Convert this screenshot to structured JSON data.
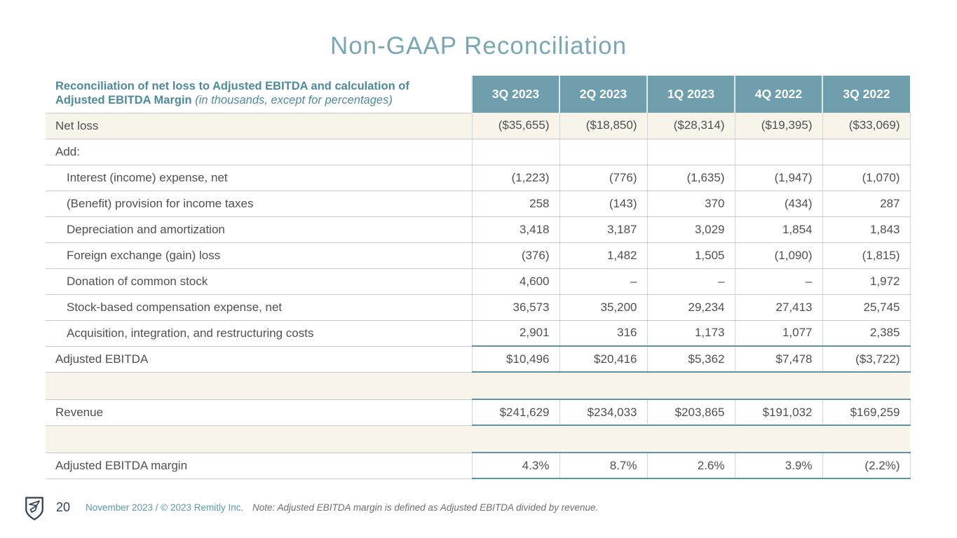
{
  "title": "Non-GAAP Reconciliation",
  "table": {
    "header_label_bold": "Reconciliation of net loss to Adjusted EBITDA and calculation of Adjusted EBITDA Margin",
    "header_label_italic": "(in thousands, except for percentages)",
    "columns": [
      "3Q 2023",
      "2Q 2023",
      "1Q 2023",
      "4Q 2022",
      "3Q 2022"
    ],
    "rows": [
      {
        "label": "Net loss",
        "values": [
          "($35,655)",
          "($18,850)",
          "($28,314)",
          "($19,395)",
          "($33,069)"
        ],
        "highlight": true
      },
      {
        "label": "Add:",
        "values": [
          "",
          "",
          "",
          "",
          ""
        ]
      },
      {
        "label": "Interest (income) expense, net",
        "values": [
          "(1,223)",
          "(776)",
          "(1,635)",
          "(1,947)",
          "(1,070)"
        ],
        "indent": true
      },
      {
        "label": "(Benefit) provision for income taxes",
        "values": [
          "258",
          "(143)",
          "370",
          "(434)",
          "287"
        ],
        "indent": true
      },
      {
        "label": "Depreciation and amortization",
        "values": [
          "3,418",
          "3,187",
          "3,029",
          "1,854",
          "1,843"
        ],
        "indent": true
      },
      {
        "label": "Foreign exchange (gain) loss",
        "values": [
          "(376)",
          "1,482",
          "1,505",
          "(1,090)",
          "(1,815)"
        ],
        "indent": true
      },
      {
        "label": "Donation of common stock",
        "values": [
          "4,600",
          "–",
          "–",
          "–",
          "1,972"
        ],
        "indent": true
      },
      {
        "label": "Stock-based compensation expense, net",
        "values": [
          "36,573",
          "35,200",
          "29,234",
          "27,413",
          "25,745"
        ],
        "indent": true
      },
      {
        "label": "Acquisition, integration, and restructuring costs",
        "values": [
          "2,901",
          "316",
          "1,173",
          "1,077",
          "2,385"
        ],
        "indent": true
      },
      {
        "label": "Adjusted EBITDA",
        "values": [
          "$10,496",
          "$20,416",
          "$5,362",
          "$7,478",
          "($3,722)"
        ],
        "total": true
      },
      {
        "type": "spacer"
      },
      {
        "label": "Revenue",
        "values": [
          "$241,629",
          "$234,033",
          "$203,865",
          "$191,032",
          "$169,259"
        ],
        "total": true
      },
      {
        "type": "spacer"
      },
      {
        "label": "Adjusted EBITDA margin",
        "values": [
          "4.3%",
          "8.7%",
          "2.6%",
          "3.9%",
          "(2.2%)"
        ],
        "total": true
      }
    ]
  },
  "footer": {
    "page_number": "20",
    "date_copyright": "November 2023 / © 2023 Remitly Inc.",
    "note": "Note: Adjusted EBITDA margin is defined as Adjusted EBITDA divided by revenue.",
    "logo": "remitly-shield-logo"
  },
  "colors": {
    "accent_teal_header": "#6f9fac",
    "title_teal": "#79a7b3",
    "label_header_teal": "#4f8a9b",
    "total_border_teal": "#5d93a3",
    "beige_row": "#f8f4ea",
    "grid_gray": "#c8c8c8",
    "column_divider": "#c9d9dd",
    "body_text": "#4f5052",
    "footer_navy": "#2e3f5c",
    "footer_teal": "#5e98a8",
    "note_gray": "#6d6e71"
  }
}
